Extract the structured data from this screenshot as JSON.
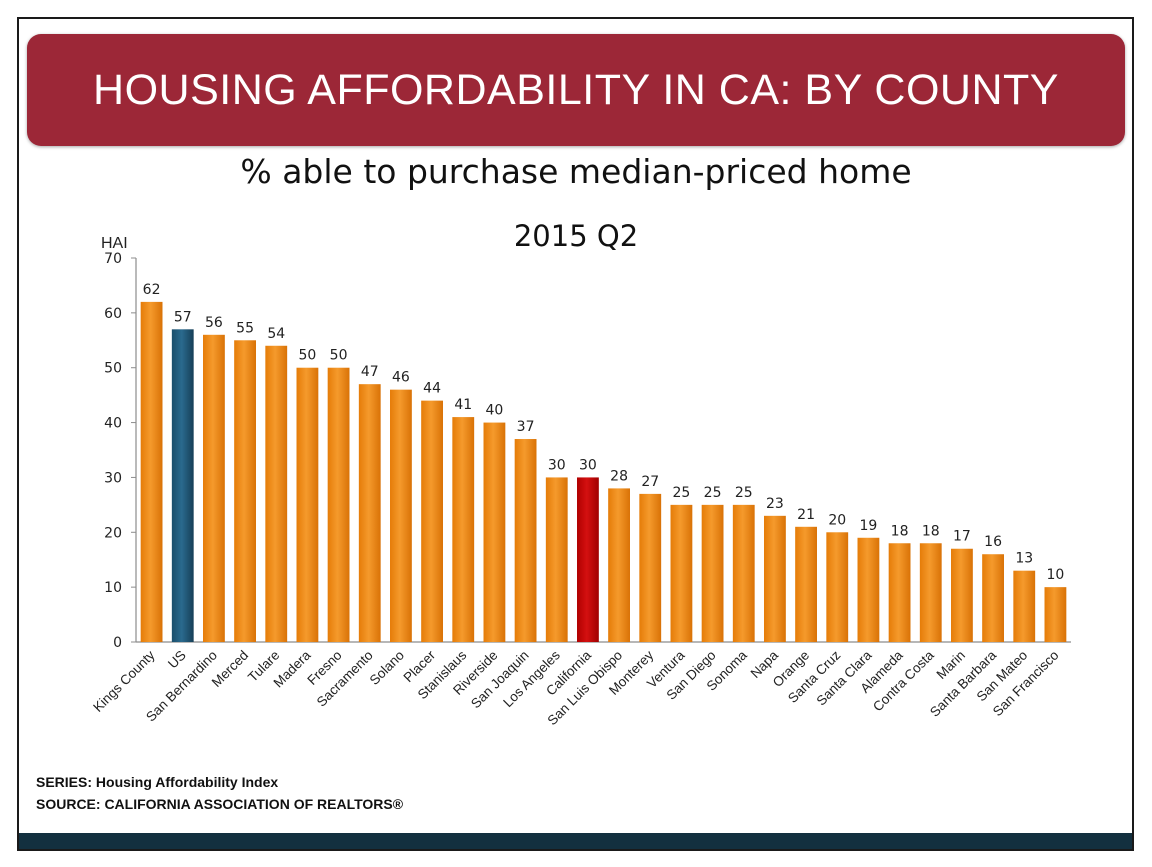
{
  "header": {
    "title": "HOUSING AFFORDABILITY IN CA: BY COUNTY"
  },
  "subtitle": {
    "line1": "% able to purchase median-priced home",
    "line2": "2015 Q2"
  },
  "footer": {
    "series": "SERIES: Housing Affordability Index",
    "source": "SOURCE:  CALIFORNIA ASSOCIATION OF REALTORS®"
  },
  "colors": {
    "banner": "#9c2737",
    "bar_default": "#f08a12",
    "bar_us": "#1f5a7a",
    "bar_california": "#c00000",
    "bottom_bar": "#13303f"
  },
  "chart_data": {
    "type": "bar",
    "title": "% able to purchase median-priced home",
    "subtitle": "2015 Q2",
    "ylabel": "HAI",
    "ylim": [
      0,
      70
    ],
    "yticks": [
      0,
      10,
      20,
      30,
      40,
      50,
      60,
      70
    ],
    "grid": false,
    "categories": [
      "Kings County",
      "US",
      "San Bernardino",
      "Merced",
      "Tulare",
      "Madera",
      "Fresno",
      "Sacramento",
      "Solano",
      "Placer",
      "Stanislaus",
      "Riverside",
      "San Joaquin",
      "Los Angeles",
      "California",
      "San Luis Obispo",
      "Monterey",
      "Ventura",
      "San Diego",
      "Sonoma",
      "Napa",
      "Orange",
      "Santa Cruz",
      "Santa Clara",
      "Alameda",
      "Contra Costa",
      "Marin",
      "Santa Barbara",
      "San Mateo",
      "San Francisco"
    ],
    "values": [
      62,
      57,
      56,
      55,
      54,
      50,
      50,
      47,
      46,
      44,
      41,
      40,
      37,
      30,
      30,
      28,
      27,
      25,
      25,
      25,
      23,
      21,
      20,
      19,
      18,
      18,
      17,
      16,
      13,
      10
    ],
    "data_labels": [
      "62",
      "57",
      "56",
      "55",
      "54",
      "50",
      "50",
      "47",
      "46",
      "44",
      "41",
      "40",
      "37",
      "30",
      "30",
      "28",
      "27",
      "25",
      "25",
      "25",
      "23",
      "21",
      "20",
      "19",
      "18",
      "18",
      "17",
      "16",
      "13",
      "10"
    ],
    "highlight": {
      "US": "bar_us",
      "California": "bar_california"
    }
  }
}
